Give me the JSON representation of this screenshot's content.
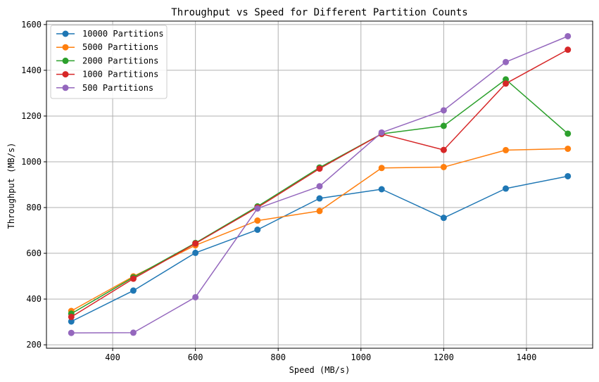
{
  "chart_data": {
    "type": "line",
    "title": "Throughput vs Speed for Different Partition Counts",
    "xlabel": "Speed (MB/s)",
    "ylabel": "Throughput (MB/s)",
    "xlim": [
      240,
      1560
    ],
    "ylim": [
      185,
      1615
    ],
    "xticks": [
      400,
      600,
      800,
      1000,
      1200,
      1400
    ],
    "yticks": [
      200,
      400,
      600,
      800,
      1000,
      1200,
      1400,
      1600
    ],
    "grid": true,
    "legend_position": "top-left",
    "x": [
      300,
      450,
      600,
      750,
      900,
      1050,
      1200,
      1350,
      1500
    ],
    "series": [
      {
        "name": "10000 Partitions",
        "color": "#1f77b4",
        "values": [
          302,
          437,
          602,
          703,
          840,
          880,
          755,
          883,
          937
        ]
      },
      {
        "name": "5000 Partitions",
        "color": "#ff7f0e",
        "values": [
          348,
          499,
          635,
          743,
          785,
          973,
          977,
          1051,
          1057
        ]
      },
      {
        "name": "2000 Partitions",
        "color": "#2ca02c",
        "values": [
          336,
          495,
          645,
          805,
          975,
          1122,
          1157,
          1360,
          1123
        ]
      },
      {
        "name": "1000 Partitions",
        "color": "#d62728",
        "values": [
          322,
          489,
          643,
          800,
          970,
          1122,
          1052,
          1342,
          1490
        ]
      },
      {
        "name": "500 Partitions",
        "color": "#9467bd",
        "values": [
          252,
          253,
          408,
          796,
          893,
          1128,
          1225,
          1436,
          1549
        ]
      }
    ]
  }
}
